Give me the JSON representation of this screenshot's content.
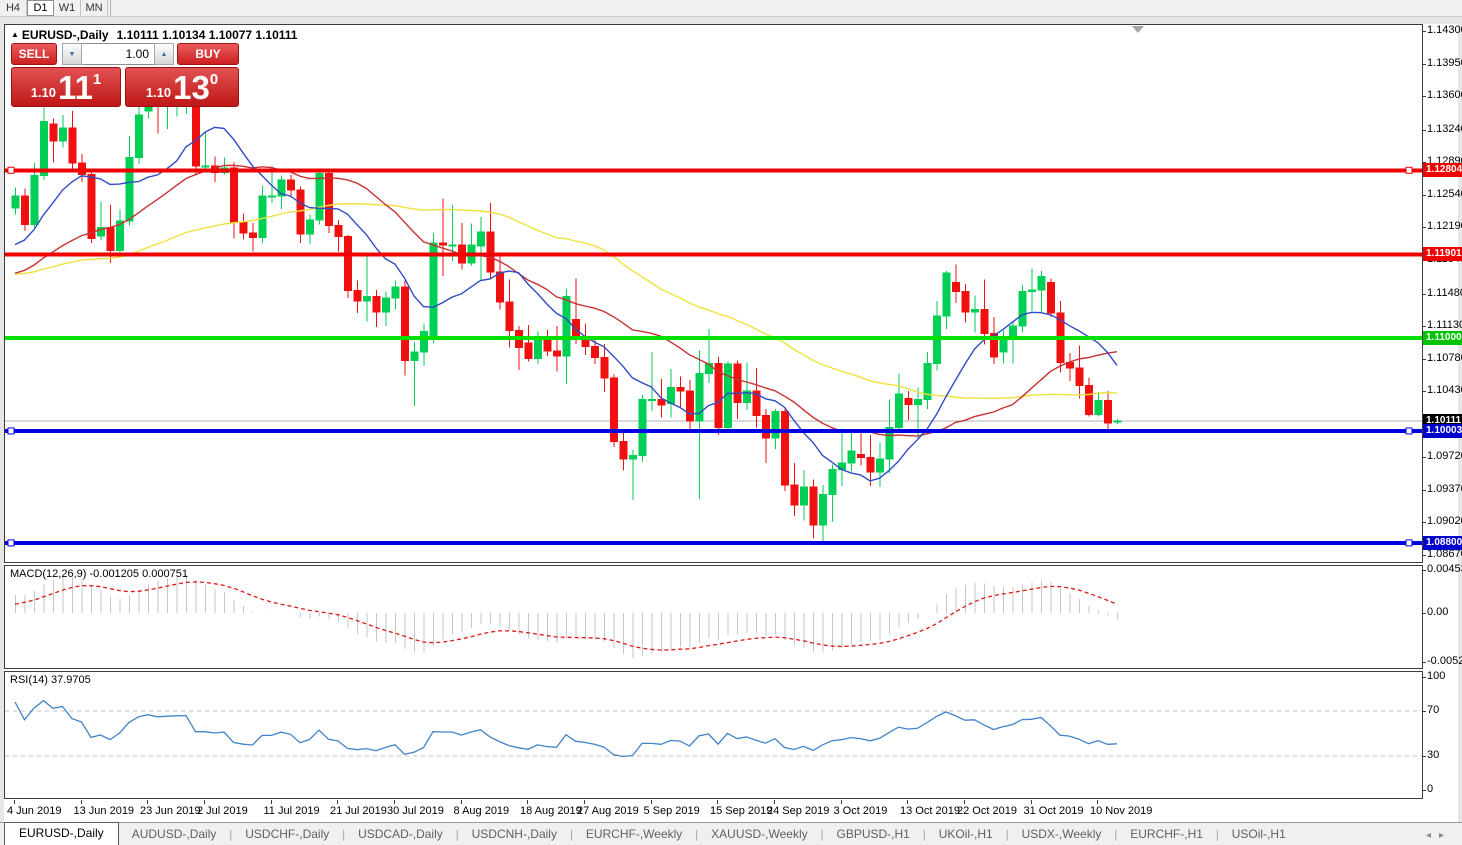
{
  "toolbar": {
    "timeframes": [
      "H4",
      "D1",
      "W1",
      "MN"
    ],
    "active": "D1"
  },
  "chart_header": {
    "expand_icon": "▲",
    "symbol": "EURUSD-,Daily",
    "ohlc": "1.10111 1.10134 1.10077 1.10111"
  },
  "trade_panel": {
    "sell_label": "SELL",
    "buy_label": "BUY",
    "volume": "1.00",
    "sell_price": {
      "prefix": "1.10",
      "big": "11",
      "sup": "1"
    },
    "buy_price": {
      "prefix": "1.10",
      "big": "13",
      "sup": "0"
    }
  },
  "price_axis": {
    "ticks": [
      "1.14300",
      "1.13950",
      "1.13600",
      "1.13240",
      "1.12890",
      "1.12540",
      "1.12190",
      "1.11840",
      "1.11480",
      "1.11130",
      "1.10780",
      "1.10430",
      "1.09720",
      "1.09370",
      "1.09020",
      "1.08670"
    ],
    "chips": [
      {
        "label": "1.12804",
        "bg": "#f00000"
      },
      {
        "label": "1.11901",
        "bg": "#f00000"
      },
      {
        "label": "1.11000",
        "bg": "#00c400"
      },
      {
        "label": "1.10111",
        "bg": "#000000"
      },
      {
        "label": "1.10003",
        "bg": "#0000cc"
      },
      {
        "label": "1.08800",
        "bg": "#0000cc"
      }
    ]
  },
  "macd_panel": {
    "label": "MACD(12,26,9)",
    "values": "-0.001205 0.000751",
    "axis": [
      "0.004536",
      "0.00",
      "-0.005205"
    ]
  },
  "rsi_panel": {
    "label": "RSI(14)",
    "value": "37.9705",
    "axis": [
      "100",
      "70",
      "30",
      "0"
    ]
  },
  "x_axis": {
    "labels": [
      "4 Jun 2019",
      "13 Jun 2019",
      "23 Jun 2019",
      "2 Jul 2019",
      "11 Jul 2019",
      "21 Jul 2019",
      "30 Jul 2019",
      "8 Aug 2019",
      "18 Aug 2019",
      "27 Aug 2019",
      "5 Sep 2019",
      "15 Sep 2019",
      "24 Sep 2019",
      "3 Oct 2019",
      "13 Oct 2019",
      "22 Oct 2019",
      "31 Oct 2019",
      "10 Nov 2019"
    ]
  },
  "tabs": {
    "items": [
      "EURUSD-,Daily",
      "AUDUSD-,Daily",
      "USDCHF-,Daily",
      "USDCAD-,Daily",
      "USDCNH-,Daily",
      "EURCHF-,Weekly",
      "XAUUSD-,Weekly",
      "GBPUSD-,H1",
      "UKOil-,H1",
      "USDX-,Weekly",
      "EURCHF-,H1",
      "USOil-,H1"
    ],
    "active_index": 0,
    "scroll_left_icon": "◂",
    "scroll_right_icon": "▸"
  },
  "chart_data": {
    "type": "candlestick",
    "symbol": "EURUSD-",
    "timeframe": "Daily",
    "bull_color": "#00cf55",
    "bear_color": "#f01010",
    "current_price": 1.10111,
    "price_range": {
      "top": 1.14365,
      "bottom": 1.08595
    },
    "hlines": [
      {
        "price": 1.12804,
        "color": "#f00000",
        "width": 4,
        "handles": true
      },
      {
        "price": 1.11901,
        "color": "#f00000",
        "width": 4,
        "handles": false
      },
      {
        "price": 1.11,
        "color": "#00e000",
        "width": 4,
        "handles": false
      },
      {
        "price": 1.10003,
        "color": "#0000e0",
        "width": 4,
        "handles": true
      },
      {
        "price": 1.088,
        "color": "#0000e0",
        "width": 4,
        "handles": true
      }
    ],
    "moving_averages": [
      {
        "period": 50,
        "color": "#efe23e"
      },
      {
        "period": 25,
        "color": "#c83232"
      },
      {
        "period": 10,
        "color": "#2f4cc4"
      }
    ],
    "indicators": {
      "macd": {
        "fast": 12,
        "slow": 26,
        "signal": 9,
        "current": -0.001205,
        "current_signal": 0.000751,
        "histogram_color": "#c6c6c6",
        "signal_color": "#e01818"
      },
      "rsi": {
        "period": 14,
        "current": 37.9705,
        "levels": [
          70,
          30
        ],
        "line_color": "#4184c8"
      }
    },
    "history": [
      1.1205,
      1.1197,
      1.119,
      1.1183,
      1.119,
      1.1182,
      1.1175,
      1.1168,
      1.1172,
      1.118,
      1.1173,
      1.1165,
      1.1158,
      1.115,
      1.1162,
      1.117,
      1.1158,
      1.1145,
      1.1152,
      1.116,
      1.1168,
      1.1175,
      1.117,
      1.1162,
      1.1155,
      1.1148,
      1.114,
      1.1135,
      1.1142,
      1.115,
      1.1158,
      1.115,
      1.1143,
      1.1136,
      1.113,
      1.1138,
      1.1146,
      1.1155,
      1.1163,
      1.1171,
      1.118,
      1.1172,
      1.1165,
      1.1173,
      1.1182,
      1.119,
      1.12,
      1.121,
      1.122,
      1.124
    ],
    "candles": [
      [
        "2019-06-04",
        1.124,
        1.1262,
        1.1233,
        1.1253
      ],
      [
        "2019-06-05",
        1.1253,
        1.1261,
        1.1215,
        1.1222
      ],
      [
        "2019-06-06",
        1.1222,
        1.1288,
        1.1219,
        1.1275
      ],
      [
        "2019-06-07",
        1.1275,
        1.1348,
        1.127,
        1.1333
      ],
      [
        "2019-06-10",
        1.133,
        1.1336,
        1.1289,
        1.1312
      ],
      [
        "2019-06-11",
        1.1312,
        1.134,
        1.1305,
        1.1326
      ],
      [
        "2019-06-12",
        1.1326,
        1.1344,
        1.1282,
        1.1288
      ],
      [
        "2019-06-13",
        1.1288,
        1.1298,
        1.1268,
        1.1276
      ],
      [
        "2019-06-14",
        1.1276,
        1.128,
        1.1202,
        1.1207
      ],
      [
        "2019-06-17",
        1.121,
        1.1247,
        1.1205,
        1.1219
      ],
      [
        "2019-06-18",
        1.1219,
        1.1243,
        1.1181,
        1.1194
      ],
      [
        "2019-06-19",
        1.1194,
        1.1238,
        1.1187,
        1.1226
      ],
      [
        "2019-06-20",
        1.1226,
        1.1317,
        1.1221,
        1.1294
      ],
      [
        "2019-06-21",
        1.1294,
        1.1354,
        1.1287,
        1.134
      ],
      [
        "2019-06-24",
        1.1344,
        1.1375,
        1.1336,
        1.136
      ],
      [
        "2019-06-25",
        1.136,
        1.1372,
        1.132,
        1.135
      ],
      [
        "2019-06-26",
        1.135,
        1.1362,
        1.1325,
        1.1355
      ],
      [
        "2019-06-27",
        1.1355,
        1.1364,
        1.1338,
        1.1358
      ],
      [
        "2019-06-28",
        1.1358,
        1.1372,
        1.1341,
        1.136
      ],
      [
        "2019-07-01",
        1.135,
        1.1356,
        1.1275,
        1.1285
      ],
      [
        "2019-07-02",
        1.1285,
        1.1322,
        1.1282,
        1.1285
      ],
      [
        "2019-07-03",
        1.1285,
        1.1295,
        1.1268,
        1.1278
      ],
      [
        "2019-07-04",
        1.1278,
        1.1294,
        1.1276,
        1.1283
      ],
      [
        "2019-07-05",
        1.1283,
        1.1289,
        1.1207,
        1.1225
      ],
      [
        "2019-07-08",
        1.1225,
        1.1234,
        1.1206,
        1.1213
      ],
      [
        "2019-07-09",
        1.1213,
        1.1224,
        1.1193,
        1.1208
      ],
      [
        "2019-07-10",
        1.1208,
        1.1264,
        1.1202,
        1.1253
      ],
      [
        "2019-07-11",
        1.1253,
        1.1285,
        1.1245,
        1.1253
      ],
      [
        "2019-07-12",
        1.1253,
        1.1275,
        1.1239,
        1.127
      ],
      [
        "2019-07-15",
        1.127,
        1.1276,
        1.1251,
        1.1259
      ],
      [
        "2019-07-16",
        1.1259,
        1.1263,
        1.1202,
        1.1212
      ],
      [
        "2019-07-17",
        1.1212,
        1.1233,
        1.1201,
        1.1227
      ],
      [
        "2019-07-18",
        1.1227,
        1.1282,
        1.1222,
        1.1277
      ],
      [
        "2019-07-19",
        1.1277,
        1.1282,
        1.1213,
        1.1221
      ],
      [
        "2019-07-22",
        1.1221,
        1.1227,
        1.1193,
        1.1209
      ],
      [
        "2019-07-23",
        1.1209,
        1.1211,
        1.1143,
        1.1151
      ],
      [
        "2019-07-24",
        1.1151,
        1.1162,
        1.1127,
        1.114
      ],
      [
        "2019-07-25",
        1.114,
        1.1188,
        1.1118,
        1.1145
      ],
      [
        "2019-07-26",
        1.1145,
        1.1152,
        1.1112,
        1.1128
      ],
      [
        "2019-07-29",
        1.1128,
        1.115,
        1.1113,
        1.1143
      ],
      [
        "2019-07-30",
        1.1143,
        1.1162,
        1.1131,
        1.1155
      ],
      [
        "2019-07-31",
        1.1155,
        1.1162,
        1.106,
        1.1076
      ],
      [
        "2019-08-01",
        1.1076,
        1.1096,
        1.1027,
        1.1085
      ],
      [
        "2019-08-02",
        1.1085,
        1.1116,
        1.107,
        1.1107
      ],
      [
        "2019-08-05",
        1.11,
        1.1213,
        1.1095,
        1.1202
      ],
      [
        "2019-08-06",
        1.1202,
        1.125,
        1.1167,
        1.12
      ],
      [
        "2019-08-07",
        1.12,
        1.1243,
        1.1183,
        1.12
      ],
      [
        "2019-08-08",
        1.12,
        1.1224,
        1.1174,
        1.1181
      ],
      [
        "2019-08-09",
        1.1181,
        1.1223,
        1.1178,
        1.12
      ],
      [
        "2019-08-12",
        1.1199,
        1.123,
        1.1162,
        1.1214
      ],
      [
        "2019-08-13",
        1.1214,
        1.1245,
        1.1163,
        1.1171
      ],
      [
        "2019-08-14",
        1.1171,
        1.1192,
        1.1131,
        1.1139
      ],
      [
        "2019-08-15",
        1.1139,
        1.1163,
        1.109,
        1.1108
      ],
      [
        "2019-08-16",
        1.1108,
        1.1113,
        1.1066,
        1.109
      ],
      [
        "2019-08-19",
        1.1095,
        1.1114,
        1.1075,
        1.1078
      ],
      [
        "2019-08-20",
        1.1078,
        1.1107,
        1.1072,
        1.1099
      ],
      [
        "2019-08-21",
        1.1099,
        1.1109,
        1.1081,
        1.1086
      ],
      [
        "2019-08-22",
        1.1086,
        1.1113,
        1.1064,
        1.1081
      ],
      [
        "2019-08-23",
        1.1081,
        1.1153,
        1.1051,
        1.1145
      ],
      [
        "2019-08-26",
        1.112,
        1.1164,
        1.1094,
        1.1101
      ],
      [
        "2019-08-27",
        1.1101,
        1.1116,
        1.1082,
        1.1091
      ],
      [
        "2019-08-28",
        1.1091,
        1.1098,
        1.1072,
        1.1079
      ],
      [
        "2019-08-29",
        1.1079,
        1.1094,
        1.1042,
        1.1057
      ],
      [
        "2019-08-30",
        1.1057,
        1.1061,
        1.0983,
        1.0989
      ],
      [
        "2019-09-02",
        1.0989,
        1.0998,
        1.0958,
        1.097
      ],
      [
        "2019-09-03",
        1.097,
        1.098,
        1.0926,
        1.0974
      ],
      [
        "2019-09-04",
        1.0974,
        1.1039,
        1.0967,
        1.1034
      ],
      [
        "2019-09-05",
        1.1034,
        1.1085,
        1.1022,
        1.1034
      ],
      [
        "2019-09-06",
        1.1034,
        1.1056,
        1.1015,
        1.1028
      ],
      [
        "2019-09-09",
        1.103,
        1.1067,
        1.1015,
        1.1047
      ],
      [
        "2019-09-10",
        1.1047,
        1.1059,
        1.1026,
        1.1043
      ],
      [
        "2019-09-11",
        1.1043,
        1.1055,
        1.0999,
        1.1011
      ],
      [
        "2019-09-12",
        1.1011,
        1.1087,
        1.0927,
        1.1062
      ],
      [
        "2019-09-13",
        1.1062,
        1.111,
        1.1052,
        1.1073
      ],
      [
        "2019-09-16",
        1.1073,
        1.108,
        1.0996,
        1.1004
      ],
      [
        "2019-09-17",
        1.1004,
        1.1075,
        1.1001,
        1.1072
      ],
      [
        "2019-09-18",
        1.1072,
        1.1076,
        1.1013,
        1.1031
      ],
      [
        "2019-09-19",
        1.1031,
        1.1074,
        1.1023,
        1.1043
      ],
      [
        "2019-09-20",
        1.1043,
        1.1068,
        1.1004,
        1.1017
      ],
      [
        "2019-09-23",
        1.1017,
        1.1024,
        1.0966,
        1.0993
      ],
      [
        "2019-09-24",
        1.0993,
        1.1024,
        1.0981,
        1.1021
      ],
      [
        "2019-09-25",
        1.1021,
        1.1024,
        1.0936,
        1.0942
      ],
      [
        "2019-09-26",
        1.0942,
        1.0966,
        1.0909,
        1.0921
      ],
      [
        "2019-09-27",
        1.0921,
        1.0958,
        1.0904,
        1.094
      ],
      [
        "2019-09-30",
        1.094,
        1.0948,
        1.0885,
        1.0899
      ],
      [
        "2019-10-01",
        1.0899,
        1.0942,
        1.0879,
        1.0932
      ],
      [
        "2019-10-02",
        1.0932,
        1.0964,
        1.0903,
        1.0959
      ],
      [
        "2019-10-03",
        1.0959,
        1.0999,
        1.0941,
        1.0966
      ],
      [
        "2019-10-04",
        1.0966,
        1.0999,
        1.0957,
        1.0979
      ],
      [
        "2019-10-07",
        1.0975,
        1.1,
        1.0963,
        1.0972
      ],
      [
        "2019-10-08",
        1.0972,
        1.0996,
        1.0941,
        1.0956
      ],
      [
        "2019-10-09",
        1.0956,
        1.0988,
        1.094,
        1.097
      ],
      [
        "2019-10-10",
        1.097,
        1.1034,
        1.0955,
        1.1004
      ],
      [
        "2019-10-11",
        1.1004,
        1.1062,
        1.1002,
        1.104
      ],
      [
        "2019-10-14",
        1.1035,
        1.1043,
        1.1012,
        1.1029
      ],
      [
        "2019-10-15",
        1.1029,
        1.1047,
        1.0991,
        1.1034
      ],
      [
        "2019-10-16",
        1.1034,
        1.1085,
        1.1024,
        1.1073
      ],
      [
        "2019-10-17",
        1.1073,
        1.114,
        1.1065,
        1.1124
      ],
      [
        "2019-10-18",
        1.1124,
        1.1172,
        1.111,
        1.117
      ],
      [
        "2019-10-21",
        1.116,
        1.1179,
        1.1138,
        1.115
      ],
      [
        "2019-10-22",
        1.115,
        1.1158,
        1.1117,
        1.1128
      ],
      [
        "2019-10-23",
        1.1128,
        1.1146,
        1.1106,
        1.1131
      ],
      [
        "2019-10-24",
        1.1131,
        1.1163,
        1.1093,
        1.1105
      ],
      [
        "2019-10-25",
        1.1105,
        1.1123,
        1.1072,
        1.108
      ],
      [
        "2019-10-28",
        1.1085,
        1.1108,
        1.1073,
        1.1099
      ],
      [
        "2019-10-29",
        1.1099,
        1.1118,
        1.1073,
        1.1113
      ],
      [
        "2019-10-30",
        1.1113,
        1.1157,
        1.1106,
        1.115
      ],
      [
        "2019-10-31",
        1.115,
        1.1175,
        1.1129,
        1.1152
      ],
      [
        "2019-11-01",
        1.1152,
        1.1172,
        1.1128,
        1.1166
      ],
      [
        "2019-11-04",
        1.116,
        1.1164,
        1.1123,
        1.1127
      ],
      [
        "2019-11-05",
        1.1127,
        1.114,
        1.1063,
        1.1074
      ],
      [
        "2019-11-06",
        1.1074,
        1.1084,
        1.1054,
        1.1068
      ],
      [
        "2019-11-07",
        1.1068,
        1.1092,
        1.1035,
        1.1049
      ],
      [
        "2019-11-08",
        1.1049,
        1.1058,
        1.1016,
        1.1018
      ],
      [
        "2019-11-11",
        1.1018,
        1.1042,
        1.1016,
        1.1033
      ],
      [
        "2019-11-12",
        1.1033,
        1.1043,
        1.1002,
        1.1009
      ],
      [
        "2019-11-13",
        1.10111,
        1.10134,
        1.10077,
        1.10111
      ]
    ]
  }
}
